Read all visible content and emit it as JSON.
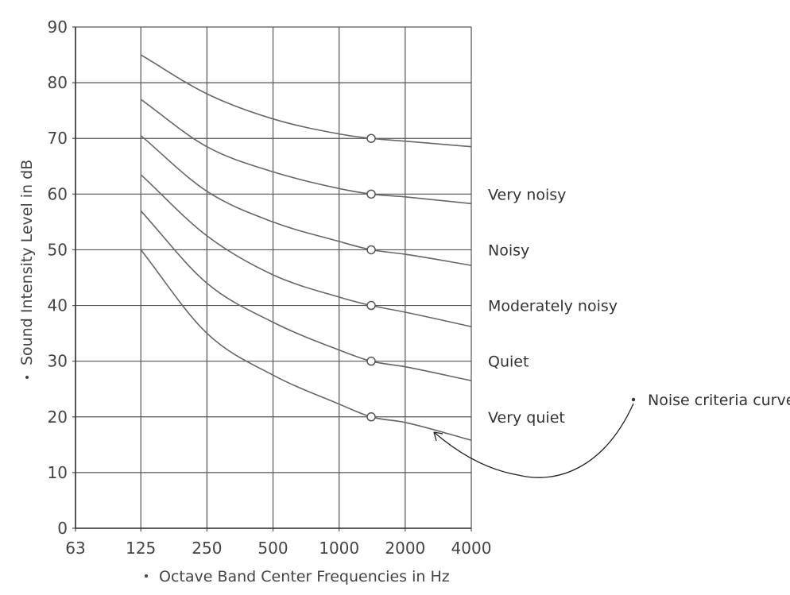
{
  "chart_data": {
    "type": "line",
    "xlabel": "Octave Band Center Frequencies in Hz",
    "ylabel": "Sound Intensity Level in dB",
    "x_scale": "log2",
    "x_ticks": [
      63,
      125,
      250,
      500,
      1000,
      2000,
      4000
    ],
    "x_tick_labels": [
      "63",
      "125",
      "250",
      "500",
      "1000",
      "2000",
      "4000"
    ],
    "y_ticks": [
      0,
      10,
      20,
      30,
      40,
      50,
      60,
      70,
      80,
      90
    ],
    "y_tick_labels": [
      "0",
      "10",
      "20",
      "30",
      "40",
      "50",
      "60",
      "70",
      "80",
      "90"
    ],
    "xlim": [
      63,
      4000
    ],
    "ylim": [
      0,
      90
    ],
    "grid": true,
    "series": [
      {
        "name": "",
        "x": [
          125,
          250,
          500,
          1000,
          1400,
          2000,
          4000
        ],
        "y": [
          85,
          78,
          73.5,
          70.8,
          70,
          69.5,
          68.5
        ],
        "marker_x": 1400,
        "marker_y": 70
      },
      {
        "name": "Very noisy",
        "x": [
          125,
          250,
          500,
          1000,
          1400,
          2000,
          4000
        ],
        "y": [
          77,
          68.5,
          64,
          61,
          60,
          59.5,
          58.3
        ],
        "marker_x": 1400,
        "marker_y": 60
      },
      {
        "name": "Noisy",
        "x": [
          125,
          250,
          500,
          1000,
          1400,
          2000,
          4000
        ],
        "y": [
          70.5,
          60.5,
          55,
          51.5,
          50,
          49.2,
          47.2
        ],
        "marker_x": 1400,
        "marker_y": 50
      },
      {
        "name": "Moderately noisy",
        "x": [
          125,
          250,
          500,
          1000,
          1400,
          2000,
          4000
        ],
        "y": [
          63.5,
          52.5,
          45.5,
          41.5,
          40,
          38.8,
          36.2
        ],
        "marker_x": 1400,
        "marker_y": 40
      },
      {
        "name": "Quiet",
        "x": [
          125,
          250,
          500,
          1000,
          1400,
          2000,
          4000
        ],
        "y": [
          57,
          44,
          37,
          32,
          30,
          29,
          26.5
        ],
        "marker_x": 1400,
        "marker_y": 30
      },
      {
        "name": "Very quiet",
        "x": [
          125,
          250,
          500,
          1000,
          1400,
          2000,
          4000
        ],
        "y": [
          50,
          35,
          27.5,
          22.3,
          20,
          19,
          15.8
        ],
        "marker_x": 1400,
        "marker_y": 20
      }
    ],
    "annotation": {
      "text": "Noise criteria curve",
      "target_series": "Very quiet"
    }
  }
}
